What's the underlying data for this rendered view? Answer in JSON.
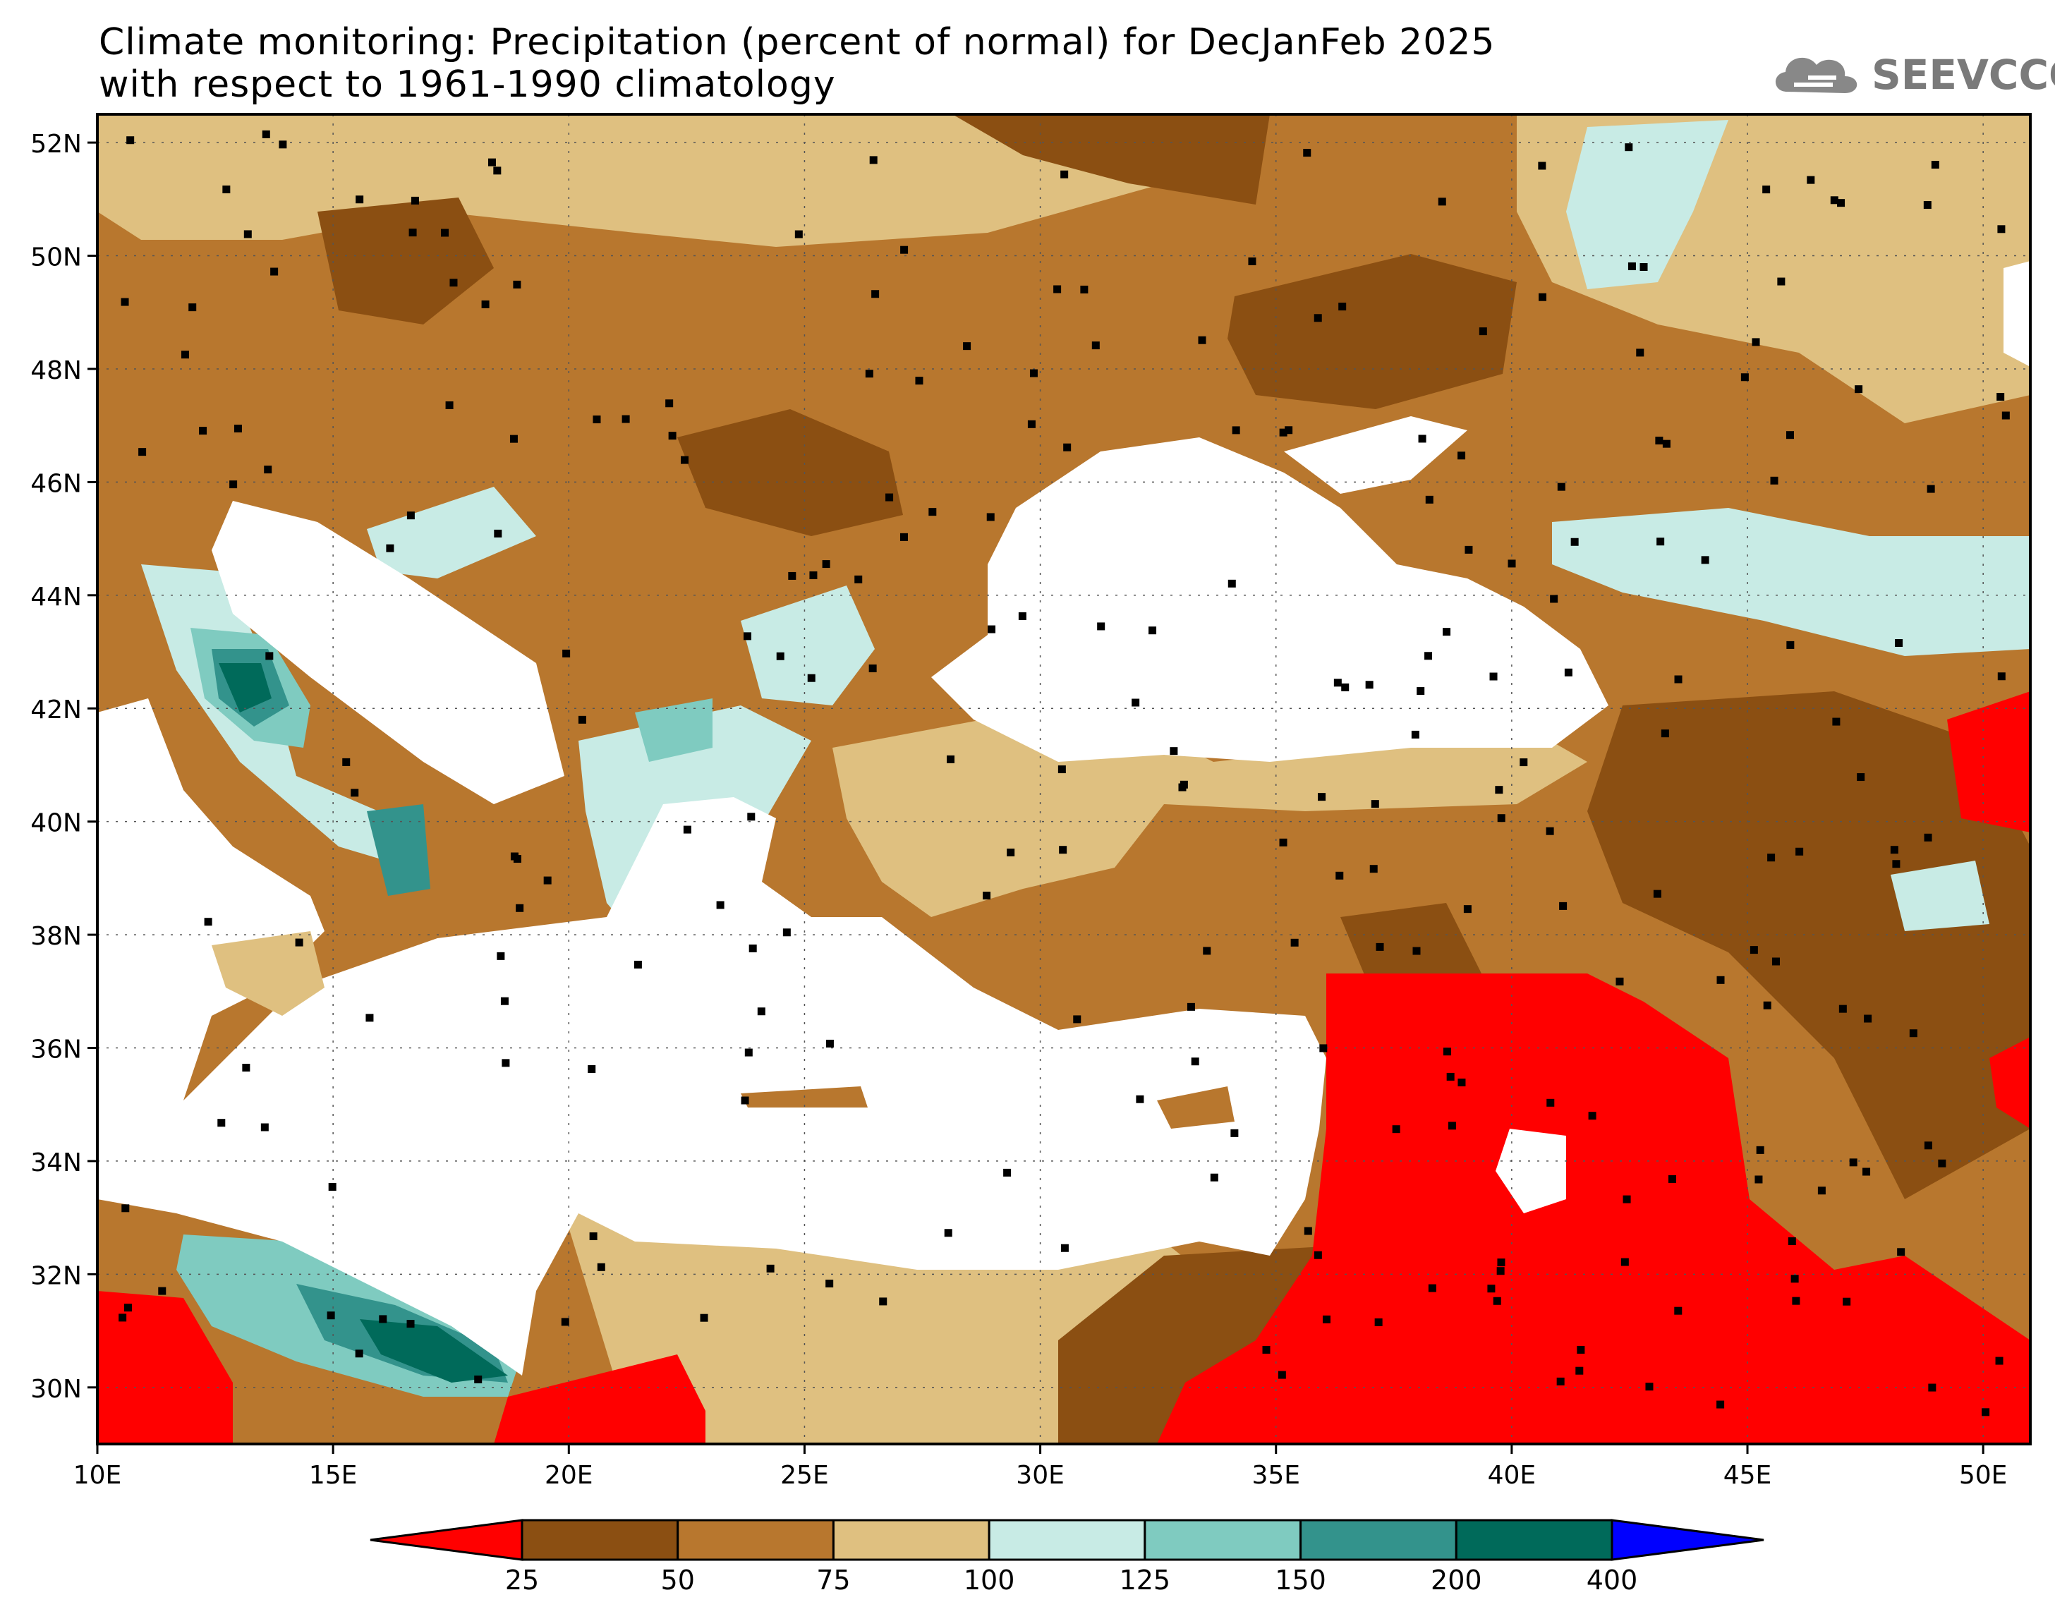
{
  "title": {
    "line1": "Climate monitoring: Precipitation (percent of normal) for DecJanFeb 2025",
    "line2": "with respect to 1961-1990 climatology"
  },
  "logo": {
    "text": "SEEVCCC"
  },
  "map": {
    "lat_labels": [
      "52N",
      "50N",
      "48N",
      "46N",
      "44N",
      "42N",
      "40N",
      "38N",
      "36N",
      "34N",
      "32N",
      "30N"
    ],
    "lon_labels": [
      "10E",
      "15E",
      "20E",
      "25E",
      "30E",
      "35E",
      "40E",
      "45E",
      "50E"
    ]
  },
  "legend": {
    "ticks": [
      "25",
      "50",
      "75",
      "100",
      "125",
      "150",
      "200",
      "400"
    ],
    "colors": [
      "#ff0000",
      "#8b4f12",
      "#b8772e",
      "#dfc080",
      "#c8ebe5",
      "#7fcbc0",
      "#33938c",
      "#006a5a",
      "#0000ff"
    ]
  },
  "colors": {
    "sea": "#ffffff",
    "base_land": "#b8772e",
    "station": "#000000"
  }
}
